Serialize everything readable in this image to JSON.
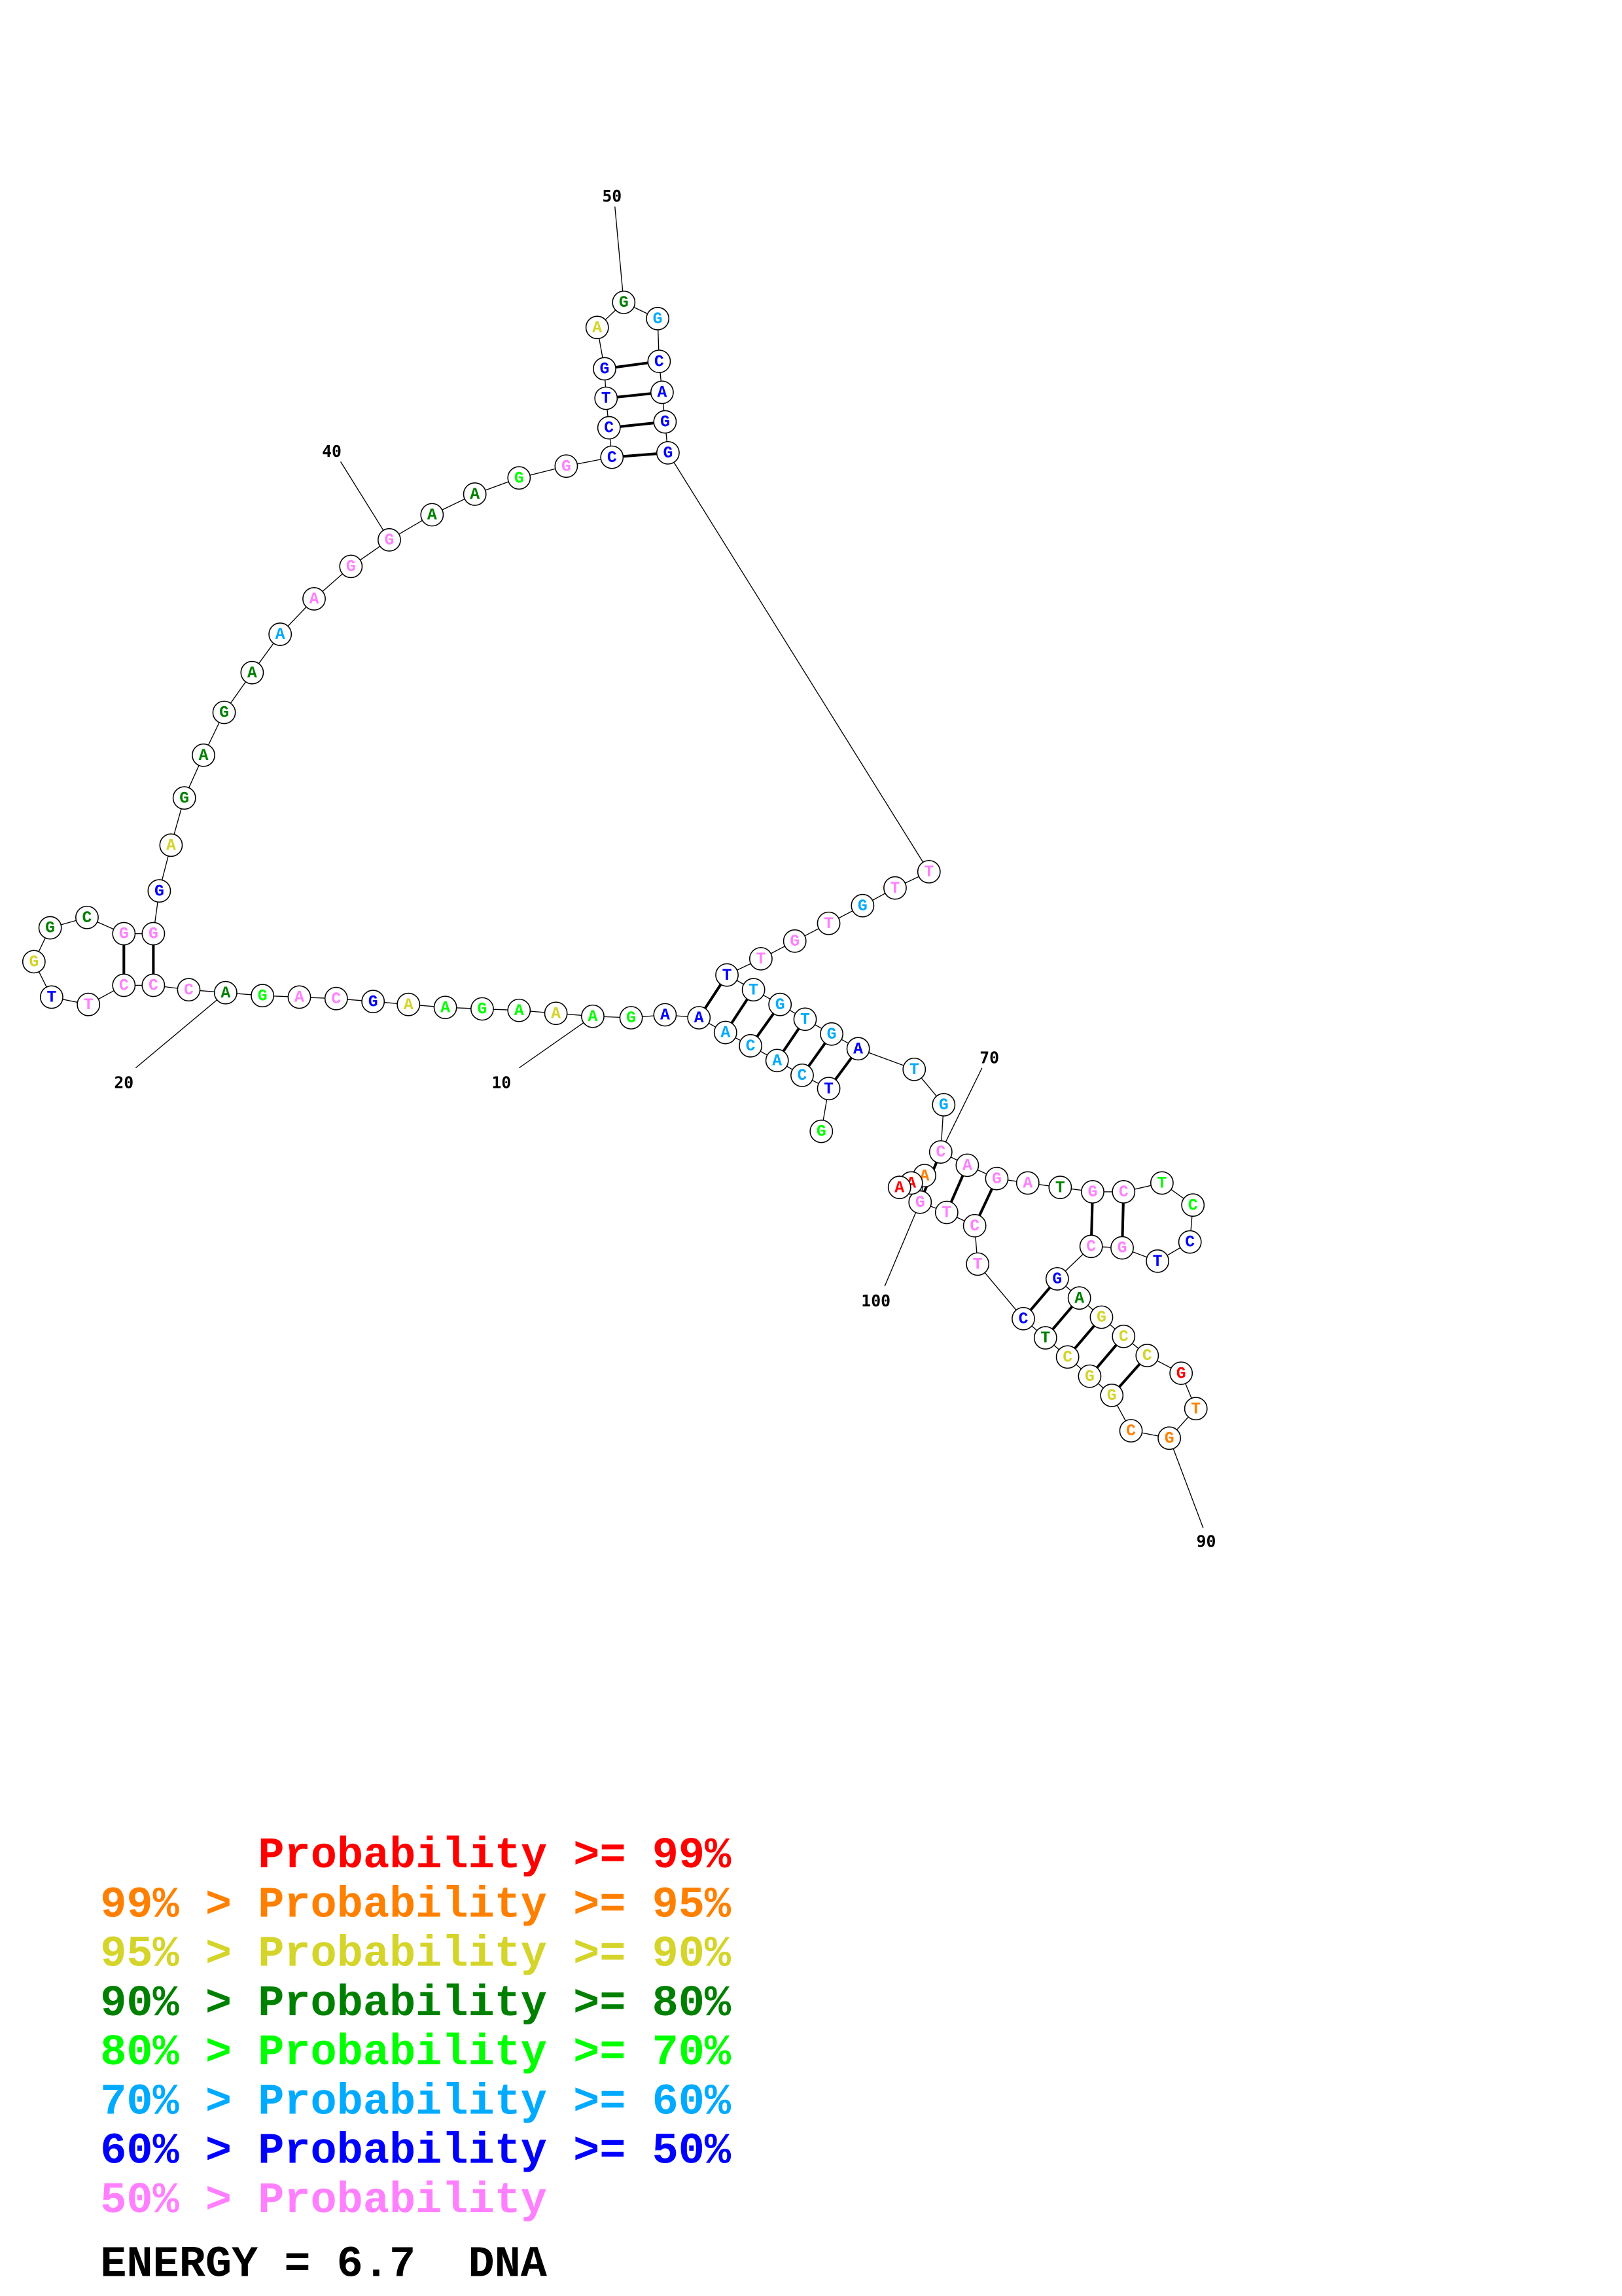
{
  "molecule_type": "DNA",
  "sequence": "GTCACAAAGAAAGAAGCAGACCCTTGGCGGGAGAGAAAGGAAGGCCTGAGGCAGGTTGTGTTTGTGATGCAGATGCTCCTGCGAGCCGTGCGGCTCTCTGAAA",
  "probability_class": [
    4,
    6,
    5,
    5,
    5,
    5,
    6,
    6,
    4,
    4,
    2,
    4,
    4,
    4,
    2,
    6,
    7,
    7,
    4,
    3,
    7,
    7,
    7,
    7,
    6,
    2,
    3,
    3,
    7,
    7,
    6,
    2,
    3,
    3,
    3,
    3,
    5,
    7,
    7,
    7,
    3,
    3,
    4,
    7,
    6,
    6,
    6,
    6,
    2,
    3,
    5,
    6,
    6,
    6,
    6,
    7,
    7,
    5,
    7,
    7,
    7,
    6,
    5,
    5,
    5,
    5,
    6,
    5,
    5,
    7,
    7,
    7,
    7,
    3,
    7,
    7,
    4,
    4,
    6,
    6,
    7,
    7,
    6,
    3,
    2,
    2,
    2,
    0,
    1,
    1,
    1,
    2,
    2,
    2,
    3,
    6,
    7,
    7,
    7,
    7,
    1,
    0,
    0
  ],
  "pairs": [
    [
      2,
      67
    ],
    [
      3,
      66
    ],
    [
      4,
      65
    ],
    [
      5,
      64
    ],
    [
      6,
      63
    ],
    [
      7,
      62
    ],
    [
      22,
      30
    ],
    [
      23,
      29
    ],
    [
      45,
      55
    ],
    [
      46,
      54
    ],
    [
      47,
      53
    ],
    [
      48,
      52
    ],
    [
      70,
      100
    ],
    [
      71,
      99
    ],
    [
      72,
      98
    ],
    [
      75,
      82
    ],
    [
      76,
      81
    ],
    [
      83,
      96
    ],
    [
      84,
      95
    ],
    [
      85,
      94
    ],
    [
      86,
      93
    ],
    [
      87,
      92
    ]
  ],
  "position_labels": [
    {
      "position": 10,
      "text": "10"
    },
    {
      "position": 20,
      "text": "20"
    },
    {
      "position": 40,
      "text": "40"
    },
    {
      "position": 50,
      "text": "50"
    },
    {
      "position": 70,
      "text": "70"
    },
    {
      "position": 90,
      "text": "90"
    },
    {
      "position": 100,
      "text": "100"
    }
  ],
  "colors": [
    "#FF0000",
    "#FF8000",
    "#D4D42A",
    "#008000",
    "#00FF00",
    "#00AAFF",
    "#0000FF",
    "#FF80FF"
  ],
  "legend": [
    {
      "text": "Probability >= 99%",
      "class": 0
    },
    {
      "text": "99% > Probability >= 95%",
      "class": 1
    },
    {
      "text": "95% > Probability >= 90%",
      "class": 2
    },
    {
      "text": "90% > Probability >= 80%",
      "class": 3
    },
    {
      "text": "80% > Probability >= 70%",
      "class": 4
    },
    {
      "text": "70% > Probability >= 60%",
      "class": 5
    },
    {
      "text": "60% > Probability >= 50%",
      "class": 6
    },
    {
      "text": "50% > Probability",
      "class": 7
    }
  ],
  "energy_line": "ENERGY = 6.7  DNA"
}
